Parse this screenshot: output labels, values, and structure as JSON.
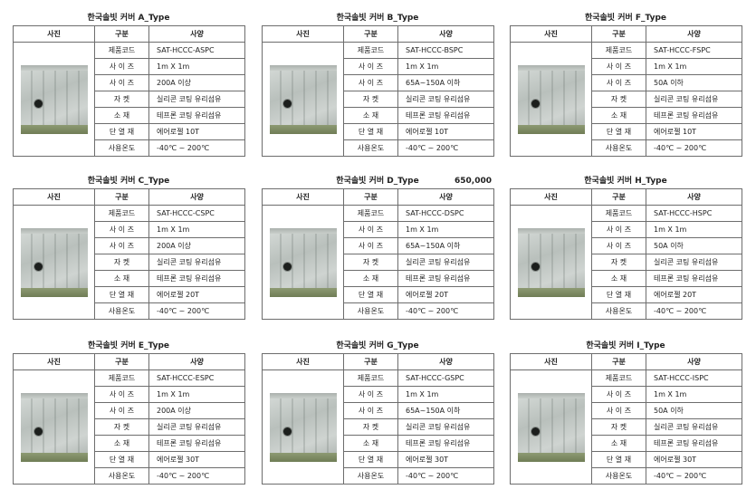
{
  "headers": {
    "photo": "사진",
    "category": "구분",
    "spec": "사양"
  },
  "labels": [
    "제품코드",
    "사 이 즈",
    "사 이 즈",
    "자 켓",
    "소 재",
    "단 열 재",
    "사용온도"
  ],
  "cards": [
    {
      "title": "한국솔빗 커버 A_Type",
      "price": "",
      "values": [
        "SAT-HCCC-ASPC",
        "1m X 1m",
        "200A 이상",
        "실리콘 코팅 유리섬유",
        "테프론 코팅 유리섬유",
        "에어로젤 10T",
        "-40℃ ~ 200℃"
      ]
    },
    {
      "title": "한국솔빗 커버 B_Type",
      "price": "",
      "values": [
        "SAT-HCCC-BSPC",
        "1m X 1m",
        "65A~150A 이하",
        "실리콘 코팅 유리섬유",
        "테프론 코팅 유리섬유",
        "에어로젤 10T",
        "-40℃ ~ 200℃"
      ]
    },
    {
      "title": "한국솔빗 커버 F_Type",
      "price": "",
      "values": [
        "SAT-HCCC-FSPC",
        "1m X 1m",
        "50A 이하",
        "실리콘 코팅 유리섬유",
        "테프론 코팅 유리섬유",
        "에어로젤 10T",
        "-40℃ ~ 200℃"
      ]
    },
    {
      "title": "한국솔빗 커버 C_Type",
      "price": "",
      "values": [
        "SAT-HCCC-CSPC",
        "1m X 1m",
        "200A 이상",
        "실리콘 코팅 유리섬유",
        "테프론 코팅 유리섬유",
        "에어로젤 20T",
        "-40℃ ~ 200℃"
      ]
    },
    {
      "title": "한국솔빗 커버 D_Type",
      "price": "650,000",
      "values": [
        "SAT-HCCC-DSPC",
        "1m X 1m",
        "65A~150A 이하",
        "실리콘 코팅 유리섬유",
        "테프론 코팅 유리섬유",
        "에어로젤 20T",
        "-40℃ ~ 200℃"
      ]
    },
    {
      "title": "한국솔빗 커버 H_Type",
      "price": "",
      "values": [
        "SAT-HCCC-HSPC",
        "1m X 1m",
        "50A 이하",
        "실리콘 코팅 유리섬유",
        "테프론 코팅 유리섬유",
        "에어로젤 20T",
        "-40℃ ~ 200℃"
      ]
    },
    {
      "title": "한국솔빗 커버 E_Type",
      "price": "",
      "values": [
        "SAT-HCCC-ESPC",
        "1m X 1m",
        "200A 이상",
        "실리콘 코팅 유리섬유",
        "테프론 코팅 유리섬유",
        "에어로젤 30T",
        "-40℃ ~ 200℃"
      ]
    },
    {
      "title": "한국솔빗 커버 G_Type",
      "price": "",
      "values": [
        "SAT-HCCC-GSPC",
        "1m X 1m",
        "65A~150A 이하",
        "실리콘 코팅 유리섬유",
        "테프론 코팅 유리섬유",
        "에어로젤 30T",
        "-40℃ ~ 200℃"
      ]
    },
    {
      "title": "한국솔빗 커버 I_Type",
      "price": "",
      "values": [
        "SAT-HCCC-ISPC",
        "1m X 1m",
        "50A 이하",
        "실리콘 코팅 유리섬유",
        "테프론 코팅 유리섬유",
        "에어로젤 30T",
        "-40℃ ~ 200℃"
      ]
    }
  ]
}
